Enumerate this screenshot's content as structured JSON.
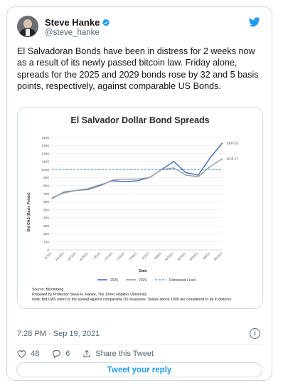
{
  "tweet": {
    "author_name": "Steve Hanke",
    "handle": "@steve_hanke",
    "text": "El Salvadoran Bonds have been in distress for 2 weeks now as a result of its newly passed bitcoin law. Friday alone, spreads for the 2025 and 2029 bonds rose by 32 and 5 basis points, respectively, against comparable US Bonds.",
    "timestamp": "7:28 PM · Sep 19, 2021",
    "likes": "48",
    "replies": "6",
    "share_label": "Share this Tweet",
    "reply_button_label": "Tweet your reply",
    "colors": {
      "accent": "#1d9bf0",
      "text": "#0f1419",
      "muted": "#536471"
    },
    "icons": [
      "verified-badge-icon",
      "twitter-bird-icon",
      "info-icon",
      "heart-icon",
      "reply-icon",
      "share-icon"
    ]
  },
  "chart_data": {
    "type": "line",
    "title": "El Salvador Dollar Bond Spreads",
    "xlabel": "Date",
    "ylabel": "Bid OAS (Basis Points)",
    "ylim": [
      0,
      1400
    ],
    "yticks": [
      0,
      100,
      200,
      300,
      400,
      500,
      600,
      700,
      800,
      900,
      1000,
      1100,
      1200,
      1300,
      1400
    ],
    "x": [
      "6/7/21",
      "6/14/21",
      "6/21/21",
      "6/28/21",
      "7/5/21",
      "7/12/21",
      "7/19/21",
      "7/26/21",
      "8/2/21",
      "8/9/21",
      "8/16/21",
      "8/23/21",
      "8/30/21",
      "9/6/21",
      "9/13/21"
    ],
    "series": [
      {
        "name": "2025",
        "color": "#4a72b0",
        "style": "solid",
        "values": [
          640,
          720,
          740,
          760,
          810,
          860,
          850,
          860,
          900,
          1000,
          1100,
          960,
          930,
          1150,
          1333.51
        ]
      },
      {
        "name": "2029",
        "color": "#9aa0a6",
        "style": "solid",
        "values": [
          650,
          710,
          740,
          750,
          800,
          870,
          880,
          880,
          900,
          1000,
          1020,
          930,
          910,
          1040,
          1135.17
        ]
      },
      {
        "name": "Distressed Level",
        "color": "#5aa0dc",
        "style": "dashed",
        "values": [
          1000,
          1000,
          1000,
          1000,
          1000,
          1000,
          1000,
          1000,
          1000,
          1000,
          1000,
          1000,
          1000,
          1000,
          1000
        ]
      }
    ],
    "end_labels": [
      "1333.51",
      "1135.17"
    ],
    "grid": true,
    "legend": "bottom",
    "notes": [
      "Source: Bloomberg",
      "Prepared by Professor Steve H. Hanke, The Johns Hopkins University",
      "Note: Bid OAS refers to the spread against comparable US treasuries. Values above 1000 are considered to be in distress."
    ]
  }
}
